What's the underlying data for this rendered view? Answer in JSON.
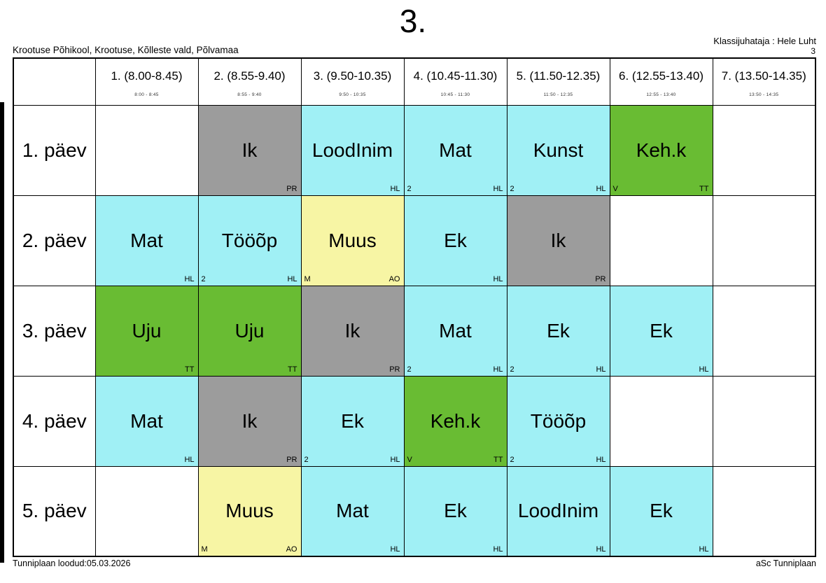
{
  "page": {
    "title": "3.",
    "class_teacher": "Klassijuhataja : Hele Luht",
    "class_number": "3",
    "school": "Krootuse Põhikool, Krootuse, Kõlleste vald, Põlvamaa",
    "footer_left": "Tunniplaan loodud:05.03.2026",
    "footer_right": "aSc Tunniplaan"
  },
  "colors": {
    "white": "#ffffff",
    "cyan": "#a0f0f5",
    "green": "#69bc33",
    "yellow": "#f7f5a4",
    "gray": "#9c9c9c"
  },
  "timetable": {
    "periods": [
      {
        "label": "1. (8.00-8.45)",
        "time": "8:00 - 8:45"
      },
      {
        "label": "2. (8.55-9.40)",
        "time": "8:55 - 9:40"
      },
      {
        "label": "3. (9.50-10.35)",
        "time": "9:50 - 10:35"
      },
      {
        "label": "4. (10.45-11.30)",
        "time": "10:45 - 11:30"
      },
      {
        "label": "5. (11.50-12.35)",
        "time": "11:50 - 12:35"
      },
      {
        "label": "6. (12.55-13.40)",
        "time": "12:55 - 13:40"
      },
      {
        "label": "7. (13.50-14.35)",
        "time": "13:50 - 14:35"
      }
    ],
    "days": [
      {
        "label": "1. päev",
        "lessons": [
          {
            "subject": "",
            "color": "white",
            "bl": "",
            "br": ""
          },
          {
            "subject": "Ik",
            "color": "gray",
            "bl": "",
            "br": "PR"
          },
          {
            "subject": "LoodInim",
            "color": "cyan",
            "bl": "",
            "br": "HL"
          },
          {
            "subject": "Mat",
            "color": "cyan",
            "bl": "2",
            "br": "HL"
          },
          {
            "subject": "Kunst",
            "color": "cyan",
            "bl": "2",
            "br": "HL"
          },
          {
            "subject": "Keh.k",
            "color": "green",
            "bl": "V",
            "br": "TT"
          },
          {
            "subject": "",
            "color": "white",
            "bl": "",
            "br": ""
          }
        ]
      },
      {
        "label": "2. päev",
        "lessons": [
          {
            "subject": "Mat",
            "color": "cyan",
            "bl": "",
            "br": "HL"
          },
          {
            "subject": "Tööõp",
            "color": "cyan",
            "bl": "2",
            "br": "HL"
          },
          {
            "subject": "Muus",
            "color": "yellow",
            "bl": "M",
            "br": "AO"
          },
          {
            "subject": "Ek",
            "color": "cyan",
            "bl": "",
            "br": "HL"
          },
          {
            "subject": "Ik",
            "color": "gray",
            "bl": "",
            "br": "PR"
          },
          {
            "subject": "",
            "color": "white",
            "bl": "",
            "br": ""
          },
          {
            "subject": "",
            "color": "white",
            "bl": "",
            "br": ""
          }
        ]
      },
      {
        "label": "3. päev",
        "lessons": [
          {
            "subject": "Uju",
            "color": "green",
            "bl": "",
            "br": "TT"
          },
          {
            "subject": "Uju",
            "color": "green",
            "bl": "",
            "br": "TT"
          },
          {
            "subject": "Ik",
            "color": "gray",
            "bl": "",
            "br": "PR"
          },
          {
            "subject": "Mat",
            "color": "cyan",
            "bl": "2",
            "br": "HL"
          },
          {
            "subject": "Ek",
            "color": "cyan",
            "bl": "2",
            "br": "HL"
          },
          {
            "subject": "Ek",
            "color": "cyan",
            "bl": "",
            "br": "HL"
          },
          {
            "subject": "",
            "color": "white",
            "bl": "",
            "br": ""
          }
        ]
      },
      {
        "label": "4. päev",
        "lessons": [
          {
            "subject": "Mat",
            "color": "cyan",
            "bl": "",
            "br": "HL"
          },
          {
            "subject": "Ik",
            "color": "gray",
            "bl": "",
            "br": "PR"
          },
          {
            "subject": "Ek",
            "color": "cyan",
            "bl": "2",
            "br": "HL"
          },
          {
            "subject": "Keh.k",
            "color": "green",
            "bl": "V",
            "br": "TT"
          },
          {
            "subject": "Tööõp",
            "color": "cyan",
            "bl": "2",
            "br": "HL"
          },
          {
            "subject": "",
            "color": "white",
            "bl": "",
            "br": ""
          },
          {
            "subject": "",
            "color": "white",
            "bl": "",
            "br": ""
          }
        ]
      },
      {
        "label": "5. päev",
        "lessons": [
          {
            "subject": "",
            "color": "white",
            "bl": "",
            "br": ""
          },
          {
            "subject": "Muus",
            "color": "yellow",
            "bl": "M",
            "br": "AO"
          },
          {
            "subject": "Mat",
            "color": "cyan",
            "bl": "",
            "br": "HL"
          },
          {
            "subject": "Ek",
            "color": "cyan",
            "bl": "",
            "br": "HL"
          },
          {
            "subject": "LoodInim",
            "color": "cyan",
            "bl": "",
            "br": "HL"
          },
          {
            "subject": "Ek",
            "color": "cyan",
            "bl": "",
            "br": "HL"
          },
          {
            "subject": "",
            "color": "white",
            "bl": "",
            "br": ""
          }
        ]
      }
    ]
  }
}
